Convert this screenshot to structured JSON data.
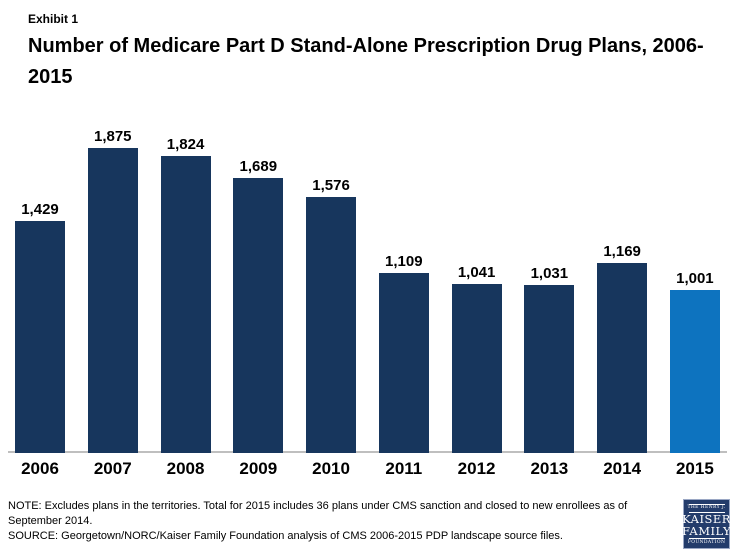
{
  "header": {
    "exhibit_label": "Exhibit 1",
    "title": "Number of Medicare Part D Stand-Alone Prescription Drug Plans, 2006-2015"
  },
  "chart_data": {
    "type": "bar",
    "title": "Number of Medicare Part D Stand-Alone Prescription Drug Plans, 2006-2015",
    "categories": [
      "2006",
      "2007",
      "2008",
      "2009",
      "2010",
      "2011",
      "2012",
      "2013",
      "2014",
      "2015"
    ],
    "values": [
      1429,
      1875,
      1824,
      1689,
      1576,
      1109,
      1041,
      1031,
      1169,
      1001
    ],
    "value_labels": [
      "1,429",
      "1,875",
      "1,824",
      "1,689",
      "1,576",
      "1,109",
      "1,041",
      "1,031",
      "1,169",
      "1,001"
    ],
    "xlabel": "",
    "ylabel": "",
    "ylim": [
      0,
      1875
    ],
    "grid": false,
    "legend": false,
    "bar_color_default": "#17365d",
    "bar_color_highlight": "#0d73bf",
    "highlight_index": 9,
    "axis_line_color": "#bfbfbf"
  },
  "footer": {
    "note": "NOTE: Excludes plans in the territories. Total for 2015 includes 36 plans under CMS sanction and closed to new enrollees as of September 2014.",
    "source": "SOURCE: Georgetown/NORC/Kaiser Family Foundation analysis of CMS 2006-2015 PDP landscape source files."
  },
  "logo": {
    "top_text": "THE HENRY J.",
    "line1": "KAISER",
    "line2": "FAMILY",
    "bottom_text": "FOUNDATION"
  }
}
